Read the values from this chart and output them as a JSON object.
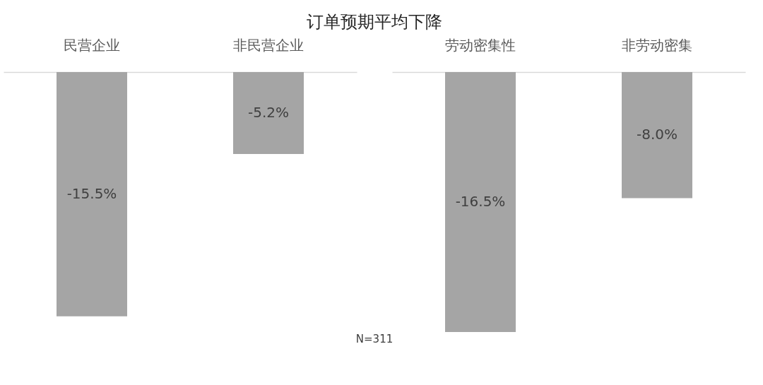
{
  "chart_data": [
    {
      "type": "bar",
      "title": "订单预期平均下降",
      "categories": [
        "民营企业",
        "非民营企业"
      ],
      "values": [
        -15.5,
        -5.2
      ],
      "value_labels": [
        "-15.5%",
        "-5.2%"
      ],
      "color": "#a5a5a5",
      "annotations": [
        "N=311"
      ]
    },
    {
      "type": "bar",
      "categories": [
        "劳动密集性",
        "非劳动密集"
      ],
      "values": [
        -16.5,
        -8.0
      ],
      "value_labels": [
        "-16.5%",
        "-8.0%"
      ],
      "color": "#a5a5a5"
    }
  ]
}
